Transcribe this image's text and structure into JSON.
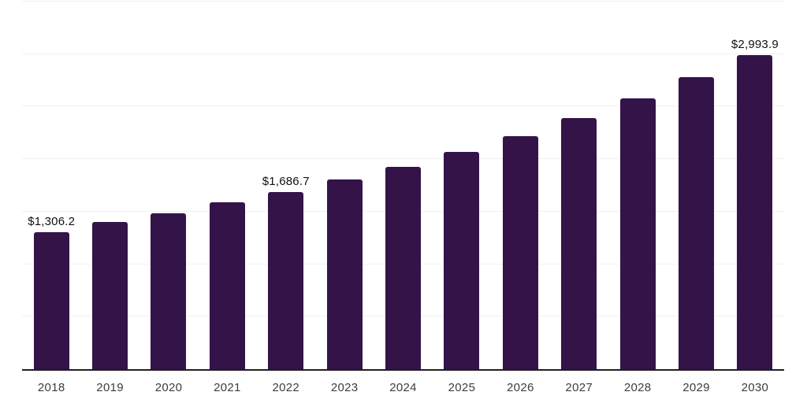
{
  "chart_data": {
    "type": "bar",
    "title": "",
    "xlabel": "",
    "ylabel": "",
    "categories": [
      "2018",
      "2019",
      "2020",
      "2021",
      "2022",
      "2023",
      "2024",
      "2025",
      "2026",
      "2027",
      "2028",
      "2029",
      "2030"
    ],
    "values": [
      1306.2,
      1401.2,
      1484.1,
      1588.6,
      1686.7,
      1806.4,
      1926.1,
      2068.5,
      2218.4,
      2390.8,
      2578.1,
      2780.5,
      2993.9
    ],
    "value_labels": {
      "2018": "$1,306.2",
      "2022": "$1,686.7",
      "2030": "$2,993.9"
    },
    "ylim": [
      0,
      3500
    ],
    "gridline_step": 500,
    "grid": true,
    "legend": false,
    "y_axis_ticks_visible": false,
    "bar_color": "#341349",
    "grid_color": "#f0f0f0",
    "axis_color": "#1f1f1f",
    "value_label_color": "#111111",
    "tick_label_color": "#3d3d3d"
  }
}
